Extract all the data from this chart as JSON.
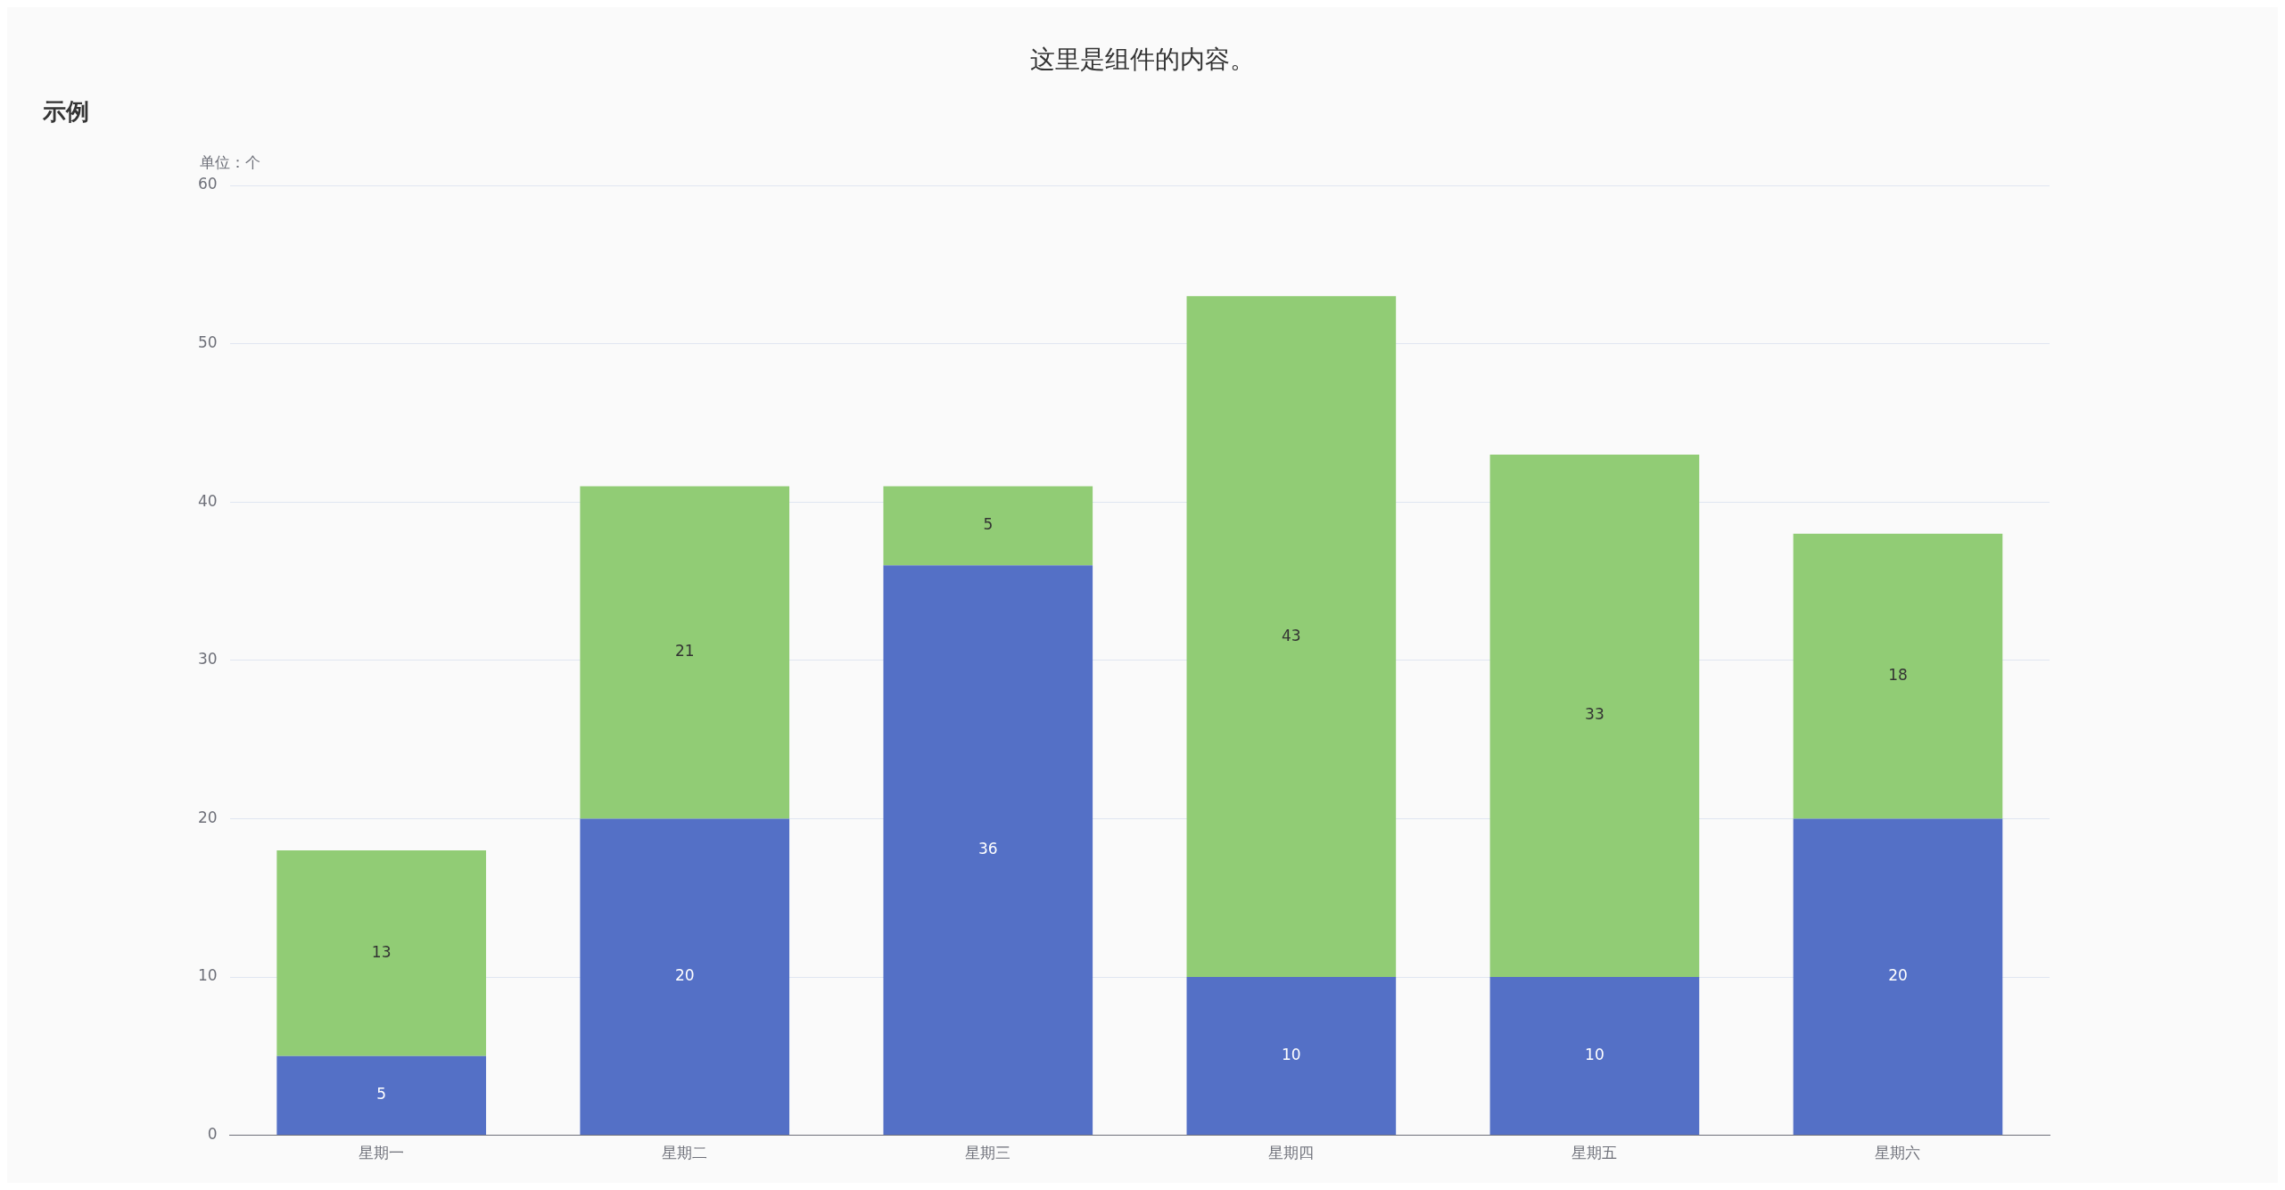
{
  "chart_data": {
    "type": "bar",
    "title": "这里是组件的内容。",
    "subtitle": "示例",
    "ylabel": "单位：个",
    "categories": [
      "星期一",
      "星期二",
      "星期三",
      "星期四",
      "星期五",
      "星期六"
    ],
    "series": [
      {
        "color": "#5470c6",
        "values": [
          5,
          20,
          36,
          10,
          10,
          20
        ]
      },
      {
        "color": "#91cc75",
        "values": [
          13,
          21,
          5,
          43,
          33,
          18
        ]
      }
    ],
    "stacked": true,
    "ylim": [
      0,
      60
    ],
    "yticks": [
      0,
      10,
      20,
      30,
      40,
      50,
      60
    ],
    "grid": "y",
    "data_labels": true,
    "legend": false
  }
}
